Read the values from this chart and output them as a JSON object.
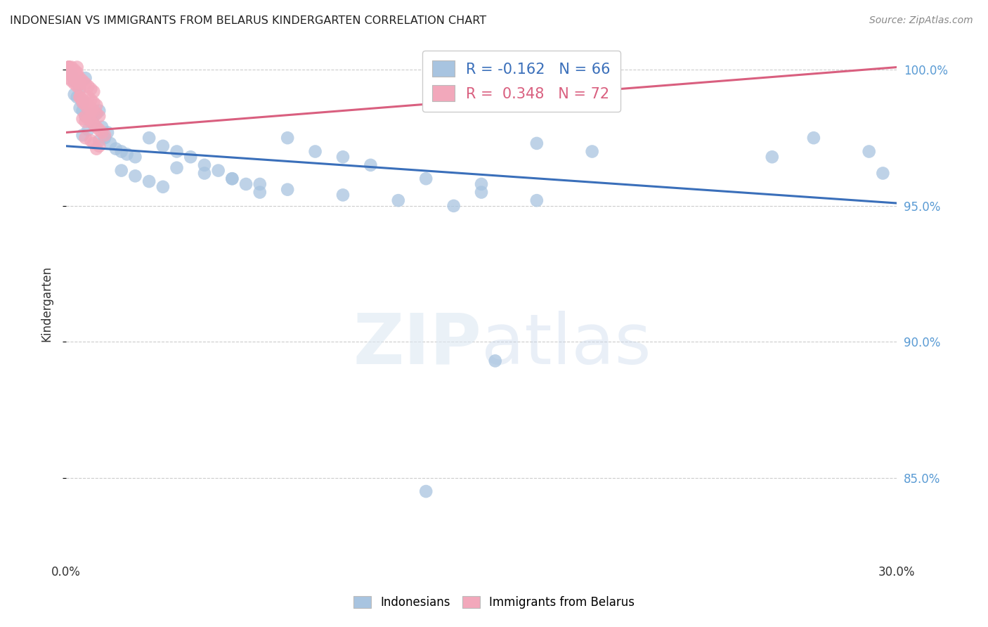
{
  "title": "INDONESIAN VS IMMIGRANTS FROM BELARUS KINDERGARTEN CORRELATION CHART",
  "source": "Source: ZipAtlas.com",
  "ylabel": "Kindergarten",
  "xlim": [
    0.0,
    0.3
  ],
  "ylim": [
    0.82,
    1.008
  ],
  "yticks": [
    0.85,
    0.9,
    0.95,
    1.0
  ],
  "xticks": [
    0.0,
    0.05,
    0.1,
    0.15,
    0.2,
    0.25,
    0.3
  ],
  "xtick_labels": [
    "0.0%",
    "",
    "",
    "",
    "",
    "",
    "30.0%"
  ],
  "legend1_label": "R = -0.162   N = 66",
  "legend2_label": "R =  0.348   N = 72",
  "blue_color": "#a8c4e0",
  "pink_color": "#f2a8bb",
  "blue_line_color": "#3a6fba",
  "pink_line_color": "#d95f7f",
  "blue_line": [
    0.0,
    0.972,
    0.3,
    0.951
  ],
  "pink_line": [
    0.0,
    0.977,
    0.3,
    1.001
  ],
  "indo_x": [
    0.002,
    0.003,
    0.004,
    0.005,
    0.003,
    0.004,
    0.006,
    0.005,
    0.007,
    0.006,
    0.008,
    0.007,
    0.009,
    0.01,
    0.008,
    0.006,
    0.012,
    0.011,
    0.01,
    0.009,
    0.013,
    0.015,
    0.014,
    0.012,
    0.016,
    0.018,
    0.02,
    0.022,
    0.025,
    0.03,
    0.035,
    0.04,
    0.045,
    0.05,
    0.055,
    0.06,
    0.065,
    0.07,
    0.08,
    0.09,
    0.1,
    0.11,
    0.13,
    0.15,
    0.17,
    0.19,
    0.15,
    0.17,
    0.02,
    0.025,
    0.03,
    0.035,
    0.04,
    0.05,
    0.06,
    0.07,
    0.08,
    0.1,
    0.12,
    0.14,
    0.27,
    0.29,
    0.255,
    0.295,
    0.13,
    0.155
  ],
  "indo_y": [
    0.998,
    0.996,
    0.995,
    0.993,
    0.991,
    0.99,
    0.988,
    0.986,
    0.997,
    0.985,
    0.984,
    0.983,
    0.982,
    0.98,
    0.978,
    0.976,
    0.985,
    0.984,
    0.983,
    0.982,
    0.979,
    0.977,
    0.975,
    0.974,
    0.973,
    0.971,
    0.97,
    0.969,
    0.968,
    0.975,
    0.972,
    0.97,
    0.968,
    0.965,
    0.963,
    0.96,
    0.958,
    0.955,
    0.975,
    0.97,
    0.968,
    0.965,
    0.96,
    0.958,
    0.973,
    0.97,
    0.955,
    0.952,
    0.963,
    0.961,
    0.959,
    0.957,
    0.964,
    0.962,
    0.96,
    0.958,
    0.956,
    0.954,
    0.952,
    0.95,
    0.975,
    0.97,
    0.968,
    0.962,
    0.845,
    0.893
  ],
  "bel_x": [
    0.001,
    0.001,
    0.002,
    0.002,
    0.003,
    0.003,
    0.004,
    0.004,
    0.001,
    0.002,
    0.003,
    0.004,
    0.005,
    0.001,
    0.002,
    0.003,
    0.004,
    0.001,
    0.002,
    0.003,
    0.004,
    0.001,
    0.002,
    0.003,
    0.001,
    0.002,
    0.003,
    0.004,
    0.005,
    0.001,
    0.002,
    0.003,
    0.005,
    0.006,
    0.007,
    0.008,
    0.009,
    0.01,
    0.005,
    0.006,
    0.007,
    0.008,
    0.009,
    0.01,
    0.011,
    0.012,
    0.006,
    0.007,
    0.008,
    0.009,
    0.01,
    0.011,
    0.007,
    0.008,
    0.009,
    0.01,
    0.011,
    0.012,
    0.013,
    0.014,
    0.007,
    0.009,
    0.01,
    0.012,
    0.011,
    0.005,
    0.006,
    0.007,
    0.008,
    0.009,
    0.15,
    0.153
  ],
  "bel_y": [
    1.001,
    0.999,
    1.001,
    0.998,
    1.0,
    0.998,
    1.001,
    0.999,
    0.997,
    0.996,
    0.995,
    0.994,
    0.993,
    1.0,
    0.999,
    0.998,
    0.997,
    1.001,
    1.0,
    0.999,
    0.998,
    1.001,
    0.999,
    0.998,
    1.0,
    0.999,
    0.997,
    0.996,
    0.995,
    1.001,
    0.999,
    0.998,
    0.997,
    0.996,
    0.995,
    0.994,
    0.993,
    0.992,
    0.99,
    0.989,
    0.988,
    0.987,
    0.986,
    0.985,
    0.984,
    0.983,
    0.982,
    0.981,
    0.99,
    0.989,
    0.988,
    0.987,
    0.983,
    0.982,
    0.981,
    0.98,
    0.979,
    0.978,
    0.977,
    0.976,
    0.975,
    0.974,
    0.973,
    0.972,
    0.971,
    0.99,
    0.988,
    0.987,
    0.986,
    0.985,
    1.001,
    0.999
  ]
}
